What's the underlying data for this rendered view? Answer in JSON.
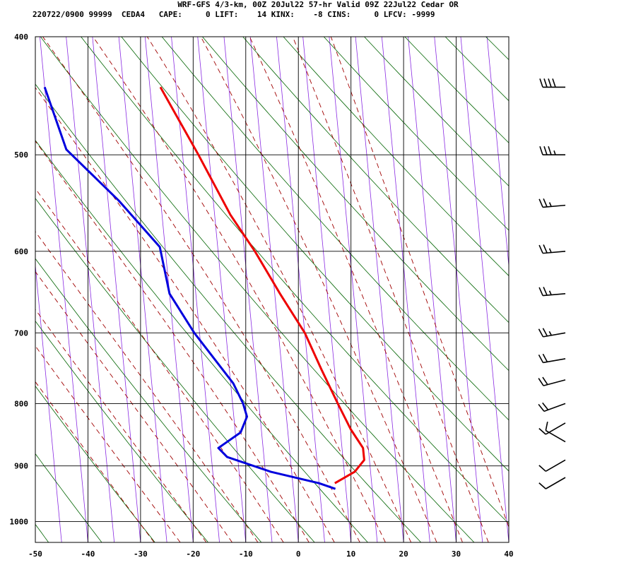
{
  "header": {
    "line1": "WRF-GFS 4/3-km, 00Z 20Jul22 57-hr Valid 09Z 22Jul22 Cedar OR",
    "line2": "220722/0900 99999  CEDA4   CAPE:     0 LIFT:    14 KINX:    -8 CINS:     0 LFCV: -9999"
  },
  "chart_data": {
    "type": "line",
    "title": "",
    "xlabel": "",
    "ylabel": "",
    "xlim": [
      -50,
      40
    ],
    "pressure_range_hpa": [
      400,
      1040
    ],
    "y_scale": "log-pressure",
    "skew": "skew-T log-P",
    "grid": true,
    "x_ticks": [
      -50,
      -40,
      -30,
      -20,
      -10,
      0,
      10,
      20,
      30,
      40
    ],
    "y_ticks": [
      400,
      500,
      600,
      700,
      800,
      900,
      1000
    ],
    "colors": {
      "temperature": "#ee0000",
      "dewpoint": "#0000dd",
      "isotherms": "#8a2be2",
      "dry_adiabats": "#006400",
      "moist_adiabats": "#a00000"
    },
    "series": [
      {
        "points": [
          {
            "p": 440,
            "x": -18
          },
          {
            "p": 500,
            "x": -12
          },
          {
            "p": 560,
            "x": -7
          },
          {
            "p": 600,
            "x": -3
          },
          {
            "p": 650,
            "x": 1
          },
          {
            "p": 700,
            "x": 5
          },
          {
            "p": 750,
            "x": 7.5
          },
          {
            "p": 800,
            "x": 10
          },
          {
            "p": 840,
            "x": 12
          },
          {
            "p": 870,
            "x": 14
          },
          {
            "p": 890,
            "x": 14
          },
          {
            "p": 910,
            "x": 12
          },
          {
            "p": 930,
            "x": 8
          }
        ]
      },
      {
        "points": [
          {
            "p": 440,
            "x": -40
          },
          {
            "p": 495,
            "x": -37
          },
          {
            "p": 545,
            "x": -28
          },
          {
            "p": 595,
            "x": -21
          },
          {
            "p": 650,
            "x": -20
          },
          {
            "p": 700,
            "x": -16
          },
          {
            "p": 770,
            "x": -9.5
          },
          {
            "p": 800,
            "x": -8
          },
          {
            "p": 820,
            "x": -7.5
          },
          {
            "p": 845,
            "x": -9
          },
          {
            "p": 870,
            "x": -13.5
          },
          {
            "p": 885,
            "x": -12
          },
          {
            "p": 910,
            "x": -4
          },
          {
            "p": 930,
            "x": 5
          },
          {
            "p": 940,
            "x": 8
          }
        ]
      }
    ],
    "wind_barbs": [
      {
        "p": 440,
        "direction_deg": 270,
        "speed_kt": 40
      },
      {
        "p": 500,
        "direction_deg": 270,
        "speed_kt": 35
      },
      {
        "p": 550,
        "direction_deg": 265,
        "speed_kt": 25
      },
      {
        "p": 600,
        "direction_deg": 265,
        "speed_kt": 25
      },
      {
        "p": 650,
        "direction_deg": 265,
        "speed_kt": 25
      },
      {
        "p": 700,
        "direction_deg": 260,
        "speed_kt": 25
      },
      {
        "p": 735,
        "direction_deg": 260,
        "speed_kt": 20
      },
      {
        "p": 765,
        "direction_deg": 255,
        "speed_kt": 20
      },
      {
        "p": 800,
        "direction_deg": 250,
        "speed_kt": 20
      },
      {
        "p": 830,
        "direction_deg": 240,
        "speed_kt": 10
      },
      {
        "p": 860,
        "direction_deg": 300,
        "speed_kt": 10
      },
      {
        "p": 890,
        "direction_deg": 240,
        "speed_kt": 10
      },
      {
        "p": 920,
        "direction_deg": 240,
        "speed_kt": 10
      }
    ]
  }
}
